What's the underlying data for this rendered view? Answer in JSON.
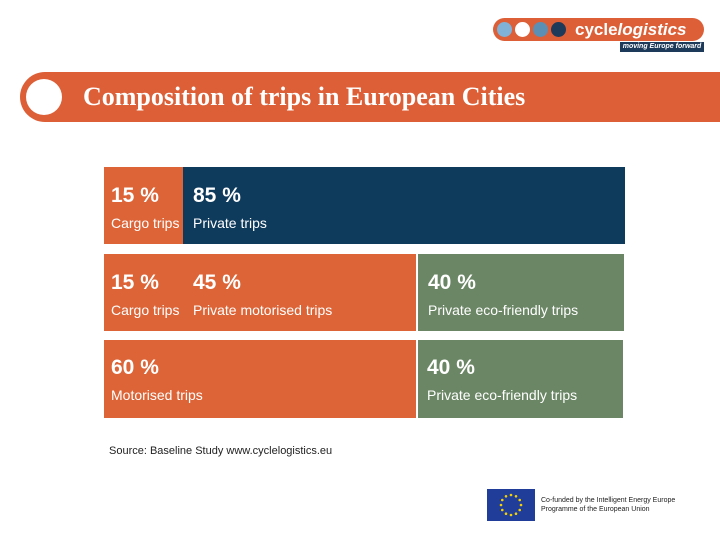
{
  "logo": {
    "name_plain": "cycle",
    "name_italic": "logistics",
    "tagline": "moving Europe forward",
    "dot_colors": [
      "#7fb2d6",
      "#ffffff",
      "#5b8fb4",
      "#1e3a5a"
    ]
  },
  "title": "Composition of trips in European Cities",
  "rows": [
    {
      "segments": [
        {
          "percent": "15 %",
          "label": "Cargo trips",
          "color": "#dc6437"
        },
        {
          "percent": "85 %",
          "label": "Private trips",
          "color": "#0e3a5c"
        }
      ]
    },
    {
      "segments": [
        {
          "percent": "15 %",
          "label": "Cargo trips",
          "color": "#dc6437"
        },
        {
          "percent": "45 %",
          "label": "Private motorised trips",
          "color": "#dc6437"
        },
        {
          "percent": "40 %",
          "label": "Private eco-friendly trips",
          "color": "#6b8665"
        }
      ]
    },
    {
      "segments": [
        {
          "percent": "60 %",
          "label": "Motorised trips",
          "color": "#dc6437"
        },
        {
          "percent": "40 %",
          "label": "Private eco-friendly trips",
          "color": "#6b8665"
        }
      ]
    }
  ],
  "source": "Source: Baseline Study www.cyclelogistics.eu",
  "eu": {
    "line1": "Co-funded by the Intelligent Energy Europe",
    "line2": "Programme of the European Union"
  },
  "colors": {
    "accent_orange": "#dc5f37",
    "navy": "#0e3a5c",
    "green": "#6b8665"
  }
}
